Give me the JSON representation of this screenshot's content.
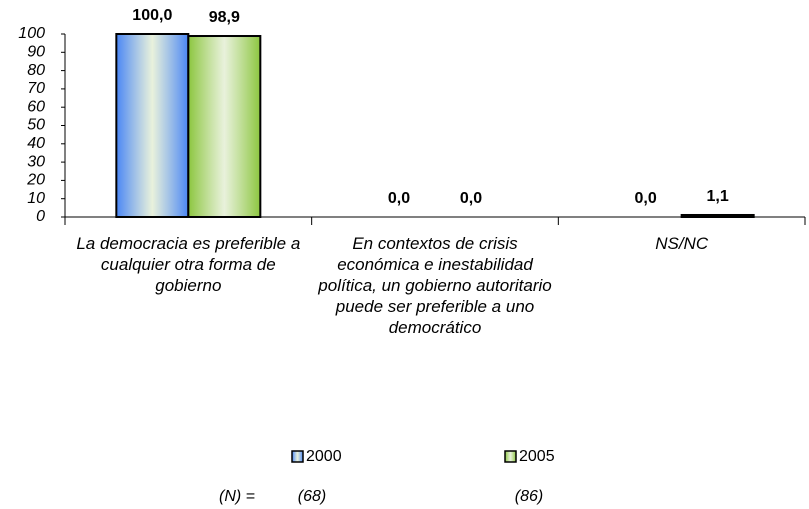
{
  "chart_data": {
    "type": "bar",
    "categories": [
      "La democracia es preferible a cualquier otra forma de gobierno",
      "En contextos de crisis económica e inestabilidad política, un gobierno autoritario puede ser preferible a uno democrático",
      "NS/NC"
    ],
    "series": [
      {
        "name": "2000",
        "color": "#4a86f5",
        "values": [
          100.0,
          0.0,
          0.0
        ],
        "value_labels": [
          "100,0",
          "0,0",
          "0,0"
        ],
        "n_label": "(68)"
      },
      {
        "name": "2005",
        "color": "#8cc63f",
        "values": [
          98.9,
          0.0,
          1.1
        ],
        "value_labels": [
          "98,9",
          "0,0",
          "1,1"
        ],
        "n_label": "(86)"
      }
    ],
    "n_title": "(N) =",
    "ylim": [
      0,
      100
    ],
    "yticks": [
      0,
      10,
      20,
      30,
      40,
      50,
      60,
      70,
      80,
      90,
      100
    ],
    "grid": false,
    "legend": "bottom"
  }
}
